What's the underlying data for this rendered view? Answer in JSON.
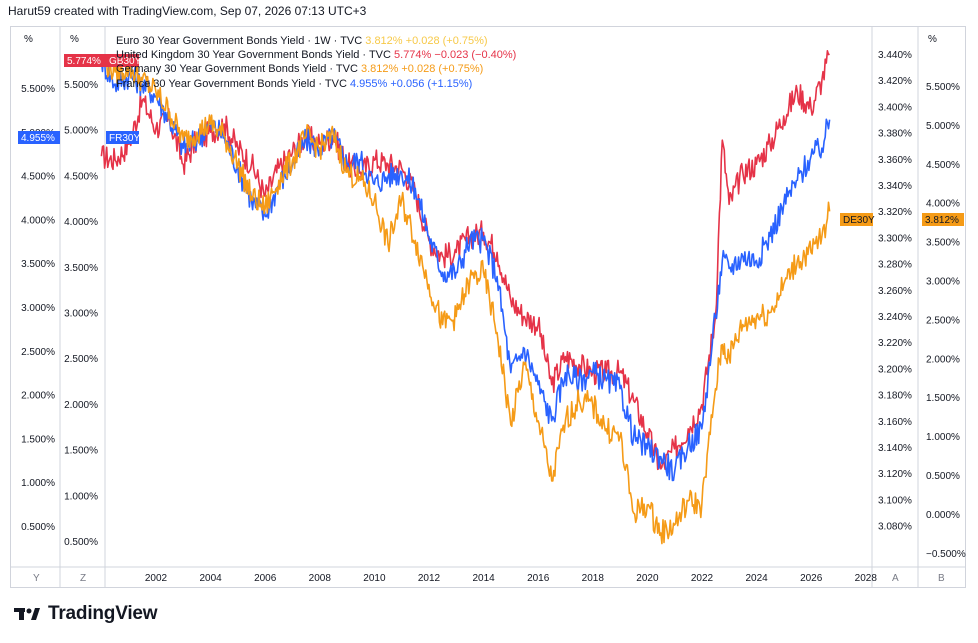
{
  "header": {
    "caption": "Harut59 created with TradingView.com, Sep 07, 2026 07:13 UTC+3"
  },
  "logo": {
    "text": "TradingView"
  },
  "legend": [
    {
      "key": "eu",
      "name": "Euro 30 Year Government Bonds Yield · 1W · TVC",
      "value": "3.812%",
      "change": "+0.028 (+0.75%)",
      "color": "#f7c948"
    },
    {
      "key": "uk",
      "name": "United Kingdom 30 Year Government Bonds Yield · TVC",
      "value": "5.774%",
      "change": "−0.023 (−0.40%)",
      "color": "#e53348"
    },
    {
      "key": "de",
      "name": "Germany 30 Year Government Bonds Yield · TVC",
      "value": "3.812%",
      "change": "+0.028 (+0.75%)",
      "color": "#f59b17"
    },
    {
      "key": "fr",
      "name": "France 30 Year Government Bonds Yield · TVC",
      "value": "4.955%",
      "change": "+0.056 (+1.15%)",
      "color": "#2962ff"
    }
  ],
  "badges": {
    "gb": {
      "value": "5.774%",
      "ticker": "GB30Y",
      "color": "#e53348"
    },
    "fr": {
      "value": "4.955%",
      "ticker": "FR30Y",
      "color": "#2962ff"
    },
    "de": {
      "value": "3.812%",
      "ticker": "DE30Y",
      "color": "#f59b17"
    }
  },
  "axes": {
    "far_left_unit": "%",
    "left_unit": "%",
    "right_unit": "%",
    "far_left_ticks": [
      "5.500%",
      "5.000%",
      "4.500%",
      "4.000%",
      "3.500%",
      "3.000%",
      "2.500%",
      "2.000%",
      "1.500%",
      "1.000%",
      "0.500%"
    ],
    "left_ticks": [
      "5.500%",
      "5.000%",
      "4.500%",
      "4.000%",
      "3.500%",
      "3.000%",
      "2.500%",
      "2.000%",
      "1.500%",
      "1.000%",
      "0.500%"
    ],
    "inner_right_ticks": [
      "3.440%",
      "3.420%",
      "3.400%",
      "3.380%",
      "3.360%",
      "3.340%",
      "3.320%",
      "3.300%",
      "3.280%",
      "3.260%",
      "3.240%",
      "3.220%",
      "3.200%",
      "3.180%",
      "3.160%",
      "3.140%",
      "3.120%",
      "3.100%",
      "3.080%"
    ],
    "right_ticks": [
      "5.500%",
      "5.000%",
      "4.500%",
      "4.000%",
      "3.500%",
      "3.000%",
      "2.500%",
      "2.000%",
      "1.500%",
      "1.000%",
      "0.500%",
      "0.000%",
      "−0.500%"
    ],
    "x_ticks": [
      "2002",
      "2004",
      "2006",
      "2008",
      "2010",
      "2012",
      "2014",
      "2016",
      "2018",
      "2020",
      "2022",
      "2024",
      "2026",
      "2028"
    ],
    "bottom_labels": {
      "y": "Y",
      "z": "Z",
      "a": "A",
      "b": "B"
    }
  },
  "chart_data": {
    "type": "line",
    "title": "Euro 30 Year Government Bonds Yield · 1W · TVC",
    "x_unit": "year",
    "ylabel": "%",
    "series": [
      {
        "name": "United Kingdom 30 Year Government Bonds Yield",
        "color": "#e53348",
        "points": [
          [
            2000.0,
            4.5
          ],
          [
            2000.5,
            4.45
          ],
          [
            2001.0,
            4.65
          ],
          [
            2001.5,
            5.2
          ],
          [
            2002.0,
            4.85
          ],
          [
            2002.5,
            4.95
          ],
          [
            2003.0,
            4.4
          ],
          [
            2003.5,
            4.7
          ],
          [
            2004.0,
            4.8
          ],
          [
            2004.5,
            4.9
          ],
          [
            2005.0,
            4.6
          ],
          [
            2005.5,
            4.4
          ],
          [
            2006.0,
            4.0
          ],
          [
            2006.5,
            4.35
          ],
          [
            2007.0,
            4.55
          ],
          [
            2007.5,
            4.75
          ],
          [
            2008.0,
            4.65
          ],
          [
            2008.5,
            4.75
          ],
          [
            2009.0,
            4.4
          ],
          [
            2009.5,
            4.3
          ],
          [
            2010.0,
            4.45
          ],
          [
            2010.5,
            4.4
          ],
          [
            2011.0,
            4.35
          ],
          [
            2011.5,
            4.05
          ],
          [
            2012.0,
            3.45
          ],
          [
            2012.5,
            3.25
          ],
          [
            2013.0,
            3.3
          ],
          [
            2013.5,
            3.5
          ],
          [
            2014.0,
            3.55
          ],
          [
            2014.5,
            3.3
          ],
          [
            2015.0,
            2.7
          ],
          [
            2015.5,
            2.5
          ],
          [
            2016.0,
            2.4
          ],
          [
            2016.5,
            1.65
          ],
          [
            2017.0,
            2.0
          ],
          [
            2017.5,
            1.9
          ],
          [
            2018.0,
            1.8
          ],
          [
            2018.5,
            1.8
          ],
          [
            2019.0,
            1.8
          ],
          [
            2019.5,
            1.45
          ],
          [
            2020.0,
            1.05
          ],
          [
            2020.5,
            0.6
          ],
          [
            2021.0,
            0.85
          ],
          [
            2021.5,
            1.1
          ],
          [
            2022.0,
            1.4
          ],
          [
            2022.5,
            2.5
          ],
          [
            2022.75,
            4.7
          ],
          [
            2023.0,
            3.9
          ],
          [
            2023.5,
            4.3
          ],
          [
            2024.0,
            4.4
          ],
          [
            2024.5,
            4.65
          ],
          [
            2025.0,
            5.0
          ],
          [
            2025.5,
            5.3
          ],
          [
            2026.0,
            5.1
          ],
          [
            2026.4,
            5.45
          ],
          [
            2026.68,
            5.774
          ]
        ]
      },
      {
        "name": "France 30 Year Government Bonds Yield",
        "color": "#2962ff",
        "points": [
          [
            2000.0,
            5.7
          ],
          [
            2000.5,
            5.4
          ],
          [
            2001.0,
            5.5
          ],
          [
            2001.5,
            5.4
          ],
          [
            2002.0,
            5.25
          ],
          [
            2002.5,
            4.95
          ],
          [
            2003.0,
            4.6
          ],
          [
            2003.5,
            4.7
          ],
          [
            2004.0,
            4.9
          ],
          [
            2004.5,
            4.75
          ],
          [
            2005.0,
            4.35
          ],
          [
            2005.5,
            3.95
          ],
          [
            2006.0,
            3.75
          ],
          [
            2006.5,
            4.15
          ],
          [
            2007.0,
            4.4
          ],
          [
            2007.5,
            4.7
          ],
          [
            2008.0,
            4.6
          ],
          [
            2008.5,
            4.75
          ],
          [
            2009.0,
            4.4
          ],
          [
            2009.5,
            4.45
          ],
          [
            2010.0,
            4.15
          ],
          [
            2010.5,
            4.25
          ],
          [
            2011.0,
            4.3
          ],
          [
            2011.5,
            4.1
          ],
          [
            2012.0,
            3.5
          ],
          [
            2012.5,
            3.05
          ],
          [
            2013.0,
            3.05
          ],
          [
            2013.5,
            3.45
          ],
          [
            2014.0,
            3.45
          ],
          [
            2014.5,
            3.0
          ],
          [
            2015.0,
            1.8
          ],
          [
            2015.5,
            2.1
          ],
          [
            2016.0,
            1.65
          ],
          [
            2016.5,
            1.2
          ],
          [
            2017.0,
            1.8
          ],
          [
            2017.5,
            1.7
          ],
          [
            2018.0,
            1.8
          ],
          [
            2018.5,
            1.7
          ],
          [
            2019.0,
            1.6
          ],
          [
            2019.5,
            1.0
          ],
          [
            2020.0,
            0.85
          ],
          [
            2020.5,
            0.75
          ],
          [
            2021.0,
            0.55
          ],
          [
            2021.5,
            0.9
          ],
          [
            2022.0,
            1.1
          ],
          [
            2022.5,
            2.5
          ],
          [
            2022.75,
            3.2
          ],
          [
            2023.0,
            3.1
          ],
          [
            2023.5,
            3.25
          ],
          [
            2024.0,
            3.2
          ],
          [
            2024.5,
            3.5
          ],
          [
            2025.0,
            3.9
          ],
          [
            2025.5,
            4.2
          ],
          [
            2026.0,
            4.5
          ],
          [
            2026.4,
            4.6
          ],
          [
            2026.68,
            4.955
          ]
        ]
      },
      {
        "name": "Germany 30 Year Government Bonds Yield",
        "color": "#f59b17",
        "points": [
          [
            2000.0,
            5.7
          ],
          [
            2000.5,
            5.55
          ],
          [
            2001.0,
            5.6
          ],
          [
            2001.5,
            5.45
          ],
          [
            2002.0,
            5.3
          ],
          [
            2002.5,
            5.05
          ],
          [
            2003.0,
            4.7
          ],
          [
            2003.5,
            4.8
          ],
          [
            2004.0,
            4.9
          ],
          [
            2004.5,
            4.75
          ],
          [
            2005.0,
            4.4
          ],
          [
            2005.5,
            4.0
          ],
          [
            2006.0,
            3.85
          ],
          [
            2006.5,
            4.2
          ],
          [
            2007.0,
            4.45
          ],
          [
            2007.5,
            4.75
          ],
          [
            2008.0,
            4.6
          ],
          [
            2008.5,
            4.75
          ],
          [
            2009.0,
            4.3
          ],
          [
            2009.5,
            4.2
          ],
          [
            2010.0,
            3.95
          ],
          [
            2010.5,
            3.4
          ],
          [
            2011.0,
            3.95
          ],
          [
            2011.5,
            3.45
          ],
          [
            2012.0,
            2.9
          ],
          [
            2012.5,
            2.4
          ],
          [
            2013.0,
            2.5
          ],
          [
            2013.5,
            2.95
          ],
          [
            2014.0,
            3.05
          ],
          [
            2014.5,
            2.3
          ],
          [
            2015.0,
            1.15
          ],
          [
            2015.5,
            1.9
          ],
          [
            2016.0,
            1.2
          ],
          [
            2016.5,
            0.45
          ],
          [
            2017.0,
            1.2
          ],
          [
            2017.5,
            1.45
          ],
          [
            2018.0,
            1.4
          ],
          [
            2018.5,
            1.1
          ],
          [
            2019.0,
            1.0
          ],
          [
            2019.5,
            0.05
          ],
          [
            2020.0,
            0.15
          ],
          [
            2020.5,
            -0.2
          ],
          [
            2021.0,
            -0.1
          ],
          [
            2021.5,
            0.2
          ],
          [
            2022.0,
            0.15
          ],
          [
            2022.5,
            1.6
          ],
          [
            2022.75,
            2.15
          ],
          [
            2023.0,
            2.0
          ],
          [
            2023.5,
            2.4
          ],
          [
            2024.0,
            2.5
          ],
          [
            2024.5,
            2.55
          ],
          [
            2025.0,
            2.9
          ],
          [
            2025.5,
            3.2
          ],
          [
            2026.0,
            3.3
          ],
          [
            2026.4,
            3.5
          ],
          [
            2026.68,
            3.812
          ]
        ]
      }
    ]
  }
}
